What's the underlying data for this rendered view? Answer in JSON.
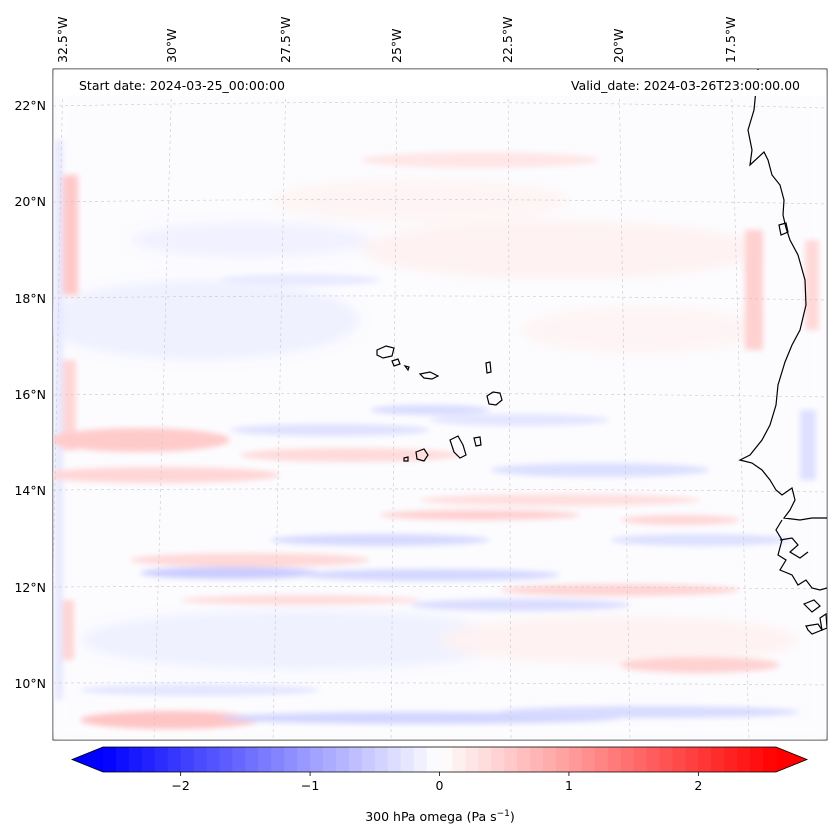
{
  "header": {
    "start_date": "Start date: 2024-03-25_00:00:00",
    "valid_date": "Valid_date: 2024-03-26T23:00:00.00"
  },
  "map": {
    "lon_labels": [
      "32.5°W",
      "30°W",
      "27.5°W",
      "25°W",
      "22.5°W",
      "20°W",
      "17.5°W"
    ],
    "lat_labels": [
      "22°N",
      "20°N",
      "18°N",
      "16°N",
      "14°N",
      "12°N",
      "10°N"
    ],
    "field_colors": {
      "negative": "#0000ff",
      "zero": "#ffffff",
      "positive": "#ff0000"
    }
  },
  "colorbar": {
    "ticks": [
      -2,
      -1,
      0,
      1,
      2
    ],
    "tick_labels": [
      "−2",
      "−1",
      "0",
      "1",
      "2"
    ],
    "label_main": "300 hPa omega (Pa s",
    "label_exp": "−1",
    "label_close": ")",
    "range": [
      -2.6,
      2.6
    ]
  }
}
